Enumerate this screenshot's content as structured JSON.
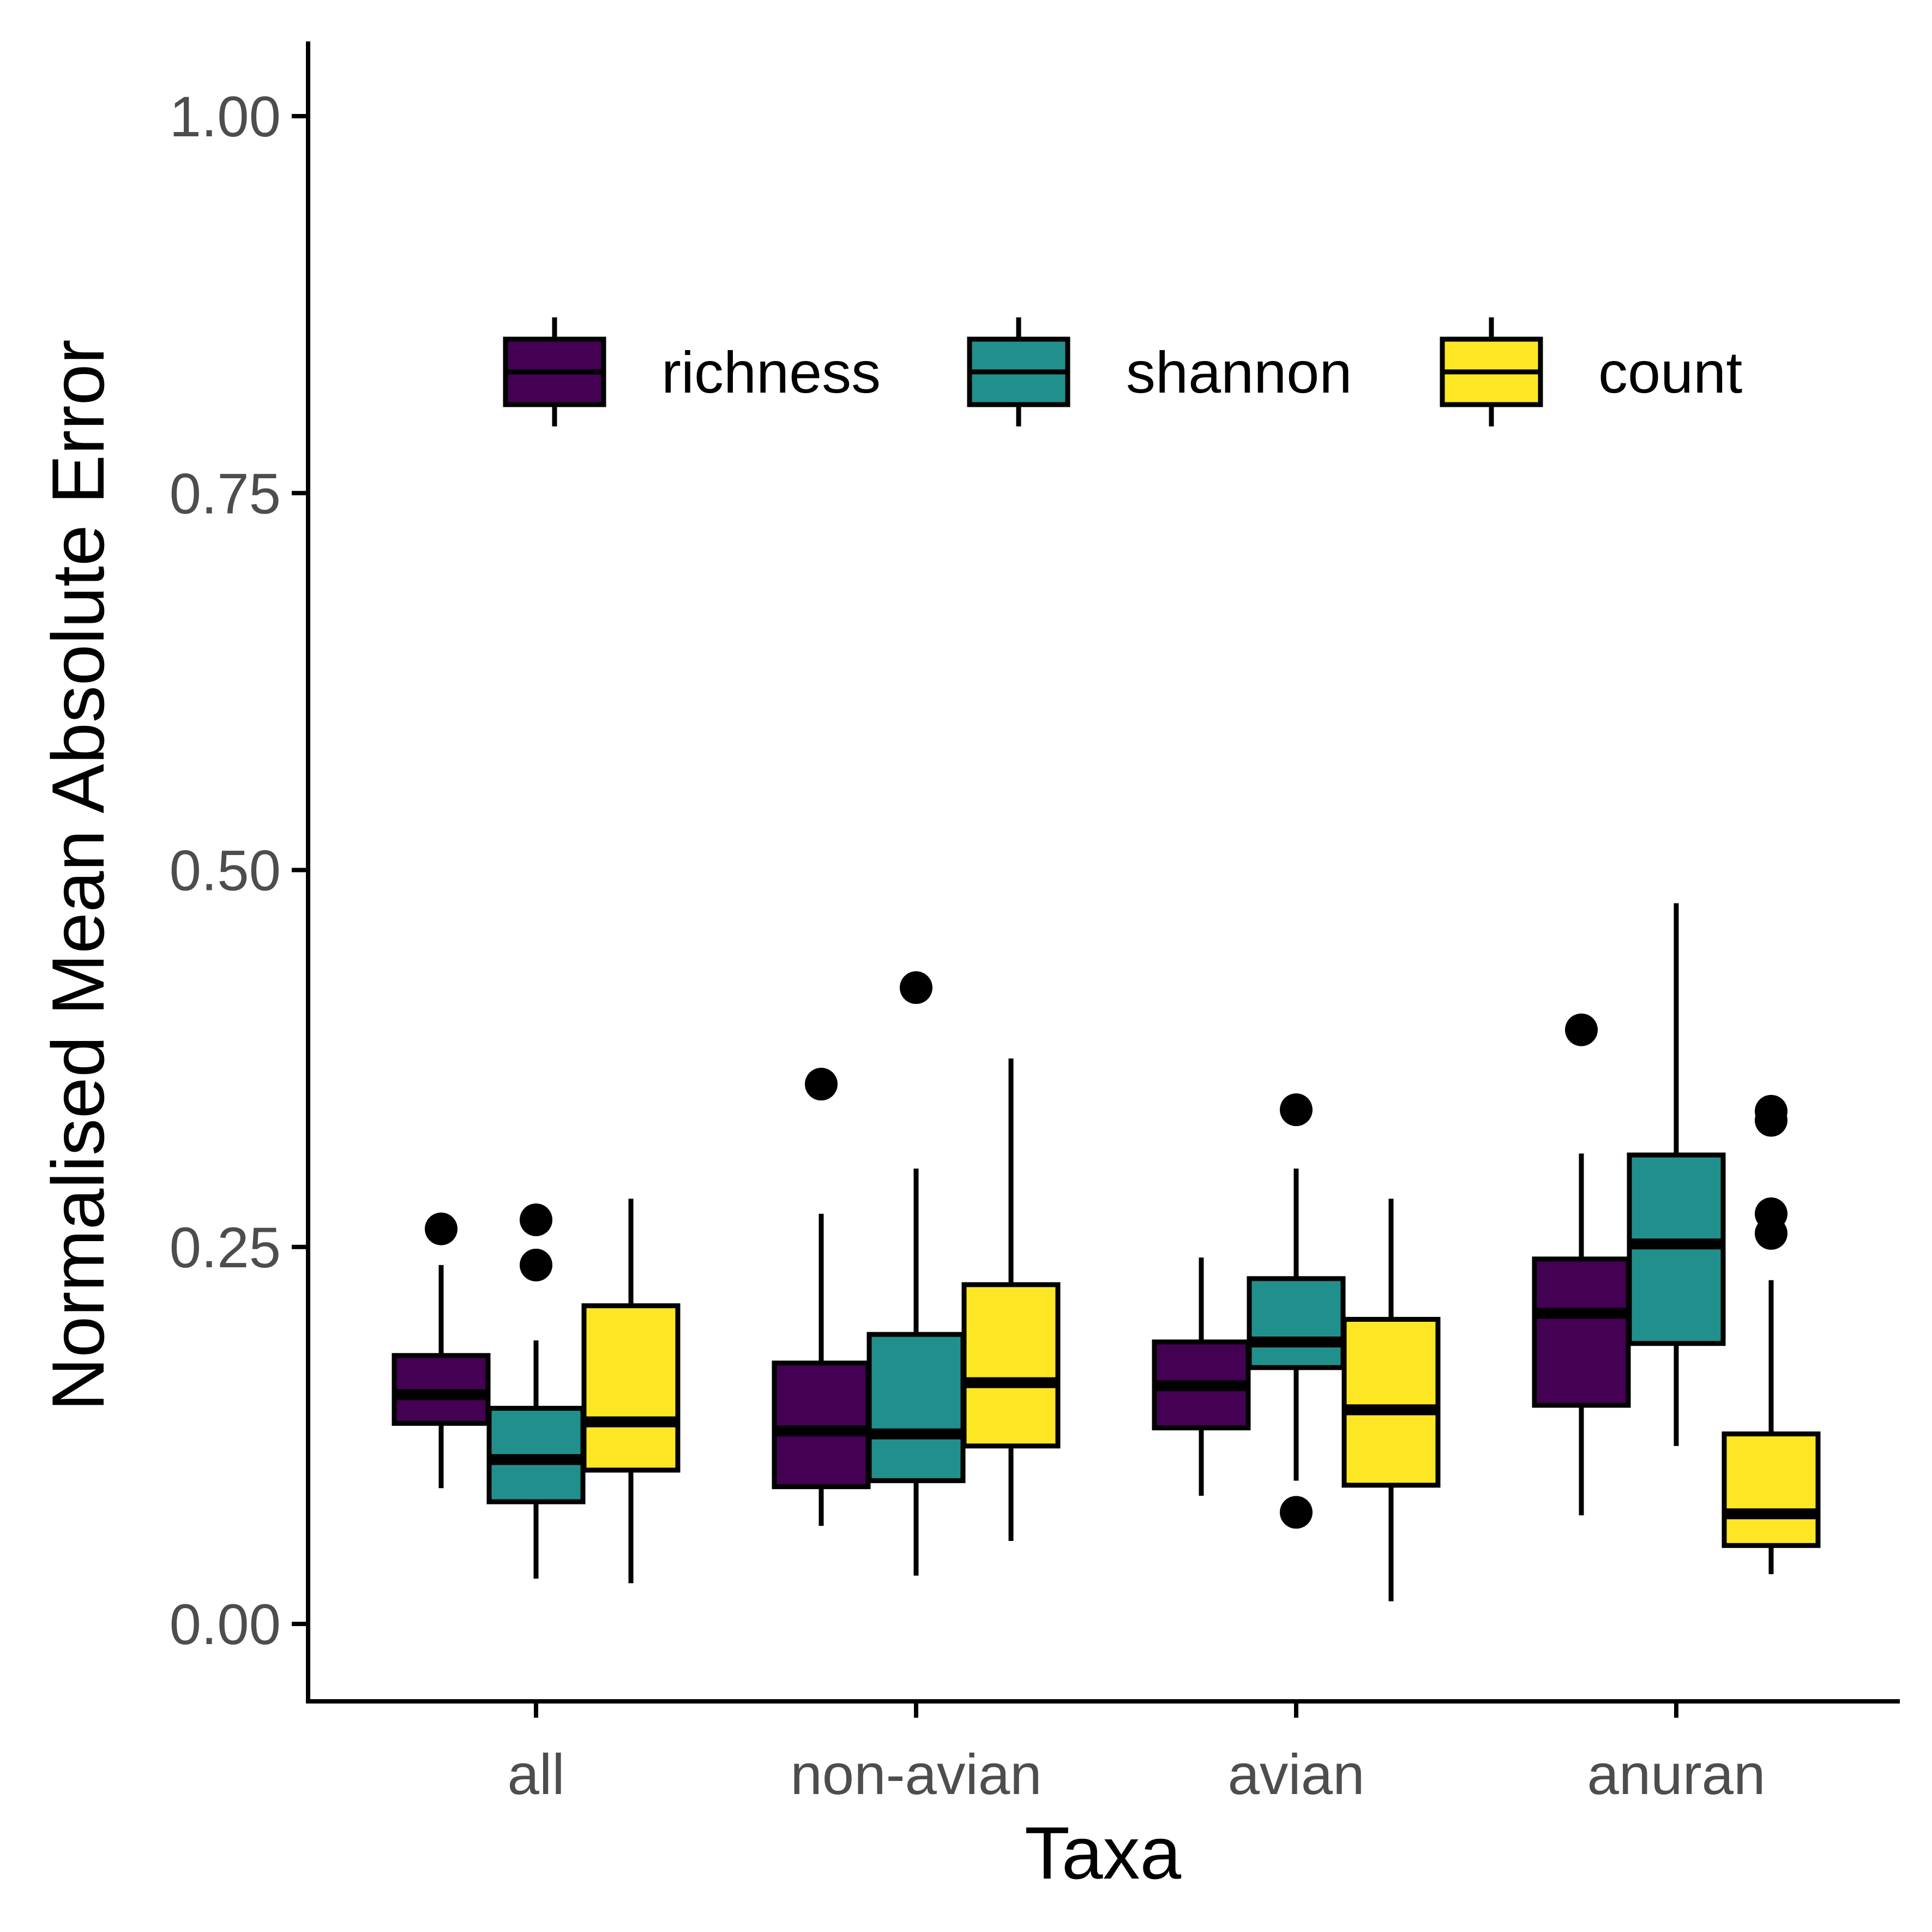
{
  "chart_data": {
    "type": "boxplot",
    "xlabel": "Taxa",
    "ylabel": "Normalised Mean Absolute Error",
    "ylim": [
      -0.05,
      1.05
    ],
    "yticks": [
      0.0,
      0.25,
      0.5,
      0.75,
      1.0
    ],
    "ytick_labels": [
      "0.00",
      "0.25",
      "0.50",
      "0.75",
      "1.00"
    ],
    "categories": [
      "all",
      "non-avian",
      "avian",
      "anuran"
    ],
    "grid": false,
    "legend_position": "top (inside plot)",
    "series": [
      {
        "name": "richness",
        "color": "#440154",
        "boxes": [
          {
            "whisker_low": 0.09,
            "q1": 0.133,
            "median": 0.152,
            "q3": 0.178,
            "whisker_high": 0.238,
            "outliers": [
              0.262
            ]
          },
          {
            "whisker_low": 0.065,
            "q1": 0.091,
            "median": 0.128,
            "q3": 0.173,
            "whisker_high": 0.272,
            "outliers": [
              0.358
            ]
          },
          {
            "whisker_low": 0.085,
            "q1": 0.13,
            "median": 0.158,
            "q3": 0.187,
            "whisker_high": 0.243,
            "outliers": []
          },
          {
            "whisker_low": 0.072,
            "q1": 0.145,
            "median": 0.206,
            "q3": 0.242,
            "whisker_high": 0.312,
            "outliers": [
              0.394
            ]
          }
        ]
      },
      {
        "name": "shannon",
        "color": "#21908C",
        "boxes": [
          {
            "whisker_low": 0.03,
            "q1": 0.081,
            "median": 0.109,
            "q3": 0.143,
            "whisker_high": 0.188,
            "outliers": [
              0.238,
              0.268
            ]
          },
          {
            "whisker_low": 0.032,
            "q1": 0.095,
            "median": 0.126,
            "q3": 0.192,
            "whisker_high": 0.302,
            "outliers": [
              0.422
            ]
          },
          {
            "whisker_low": 0.095,
            "q1": 0.17,
            "median": 0.187,
            "q3": 0.229,
            "whisker_high": 0.302,
            "outliers": [
              0.074,
              0.341
            ]
          },
          {
            "whisker_low": 0.118,
            "q1": 0.186,
            "median": 0.252,
            "q3": 0.311,
            "whisker_high": 0.478,
            "outliers": []
          }
        ]
      },
      {
        "name": "count",
        "color": "#FDE725",
        "boxes": [
          {
            "whisker_low": 0.027,
            "q1": 0.102,
            "median": 0.134,
            "q3": 0.211,
            "whisker_high": 0.282,
            "outliers": []
          },
          {
            "whisker_low": 0.055,
            "q1": 0.118,
            "median": 0.16,
            "q3": 0.225,
            "whisker_high": 0.375,
            "outliers": []
          },
          {
            "whisker_low": 0.015,
            "q1": 0.092,
            "median": 0.142,
            "q3": 0.202,
            "whisker_high": 0.282,
            "outliers": []
          },
          {
            "whisker_low": 0.033,
            "q1": 0.052,
            "median": 0.073,
            "q3": 0.126,
            "whisker_high": 0.228,
            "outliers": [
              0.259,
              0.272,
              0.334,
              0.34
            ]
          }
        ]
      }
    ]
  }
}
